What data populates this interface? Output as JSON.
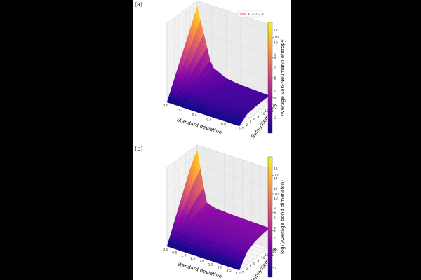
{
  "chart_data": [
    {
      "type": "surface3d",
      "panel_label": "(a)",
      "xlabel": "Standard deviation",
      "ylabel": "Subsystem size l",
      "colorbar_label": "Average von-Neumann entropy",
      "legend": "4l = 2 − 2",
      "colormap": "plasma",
      "x_ticks": [
        "0.0",
        "0.2",
        "0.4",
        "0.6",
        "0.8",
        "1.0"
      ],
      "y_ticks": [
        "0",
        "2",
        "4",
        "6",
        "8",
        "10",
        "12",
        "14",
        "16"
      ],
      "z_ticks": [
        "2",
        "4",
        "6",
        "8",
        "10",
        "12"
      ],
      "colorbar_ticks": [
        "2",
        "4",
        "6",
        "8",
        "10"
      ],
      "xlim": [
        0,
        1.0
      ],
      "ylim": [
        0,
        16
      ],
      "zlim": [
        0,
        13
      ],
      "surface_x": [
        0,
        0.2,
        0.4,
        0.6,
        0.8,
        1.0
      ],
      "surface_y": [
        0,
        4,
        8,
        12,
        16
      ],
      "surface_z": [
        [
          0.0,
          3.0,
          6.0,
          9.0,
          12.0
        ],
        [
          0.0,
          1.6,
          2.2,
          2.7,
          3.0
        ],
        [
          0.0,
          1.2,
          1.5,
          1.7,
          1.8
        ],
        [
          0.0,
          1.1,
          1.3,
          1.4,
          1.5
        ],
        [
          0.0,
          1.0,
          1.2,
          1.3,
          1.4
        ],
        [
          0.0,
          1.0,
          1.2,
          1.3,
          1.3
        ]
      ]
    },
    {
      "type": "surface3d",
      "panel_label": "(b)",
      "xlabel": "Standard deviation",
      "ylabel": "Subsystem size l",
      "colorbar_label": "log₂(Average bond dimension)",
      "colormap": "plasma",
      "x_ticks": [
        "0.0",
        "0.5",
        "1.0",
        "1.5",
        "2.0",
        "2.5",
        "3.0",
        "3.5",
        "4.0"
      ],
      "y_ticks": [
        "0",
        "2",
        "4",
        "6",
        "8",
        "10",
        "12",
        "14",
        "16"
      ],
      "z_ticks": [
        "2",
        "4",
        "6",
        "8",
        "10",
        "12",
        "14",
        "16"
      ],
      "colorbar_ticks": [
        "2",
        "4",
        "6",
        "8",
        "10",
        "12"
      ],
      "xlim": [
        0,
        4.0
      ],
      "ylim": [
        0,
        16
      ],
      "zlim": [
        0,
        16
      ],
      "surface_x": [
        0,
        0.5,
        1.0,
        2.0,
        3.0,
        4.0
      ],
      "surface_y": [
        0,
        4,
        8,
        12,
        16
      ],
      "surface_z": [
        [
          0.0,
          4.0,
          8.0,
          12.0,
          15.0
        ],
        [
          0.0,
          2.8,
          4.0,
          4.6,
          5.0
        ],
        [
          0.0,
          2.6,
          3.6,
          4.1,
          4.4
        ],
        [
          0.0,
          2.5,
          3.4,
          3.9,
          4.2
        ],
        [
          0.0,
          2.5,
          3.4,
          3.8,
          4.1
        ],
        [
          0.0,
          2.5,
          3.4,
          3.8,
          4.0
        ]
      ]
    }
  ]
}
